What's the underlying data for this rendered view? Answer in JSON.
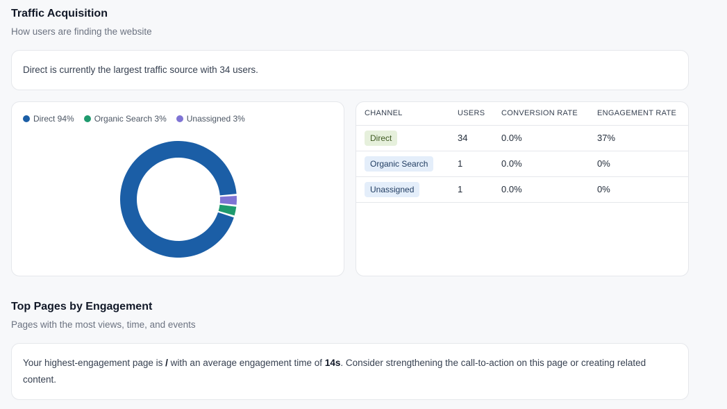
{
  "traffic": {
    "title": "Traffic Acquisition",
    "subtitle": "How users are finding the website",
    "insight": "Direct is currently the largest traffic source with 34 users."
  },
  "chart_data": {
    "type": "pie",
    "legend_position": "top-left",
    "series": [
      {
        "name": "Direct",
        "value": 94,
        "label": "Direct 94%",
        "color": "#1b5ea6"
      },
      {
        "name": "Organic Search",
        "value": 3,
        "label": "Organic Search 3%",
        "color": "#1f9a6e"
      },
      {
        "name": "Unassigned",
        "value": 3,
        "label": "Unassigned 3%",
        "color": "#7f74d4"
      }
    ]
  },
  "table": {
    "headers": [
      "CHANNEL",
      "USERS",
      "CONVERSION RATE",
      "ENGAGEMENT RATE"
    ],
    "rows": [
      {
        "channel": "Direct",
        "users": "34",
        "conversion": "0.0%",
        "engagement": "37%",
        "chip_bg": "#e6f0dc",
        "chip_fg": "#3f5a22"
      },
      {
        "channel": "Organic Search",
        "users": "1",
        "conversion": "0.0%",
        "engagement": "0%",
        "chip_bg": "#e4eefa",
        "chip_fg": "#1e3a5f"
      },
      {
        "channel": "Unassigned",
        "users": "1",
        "conversion": "0.0%",
        "engagement": "0%",
        "chip_bg": "#e4eefa",
        "chip_fg": "#1e3a5f"
      }
    ]
  },
  "pages": {
    "title": "Top Pages by Engagement",
    "subtitle": "Pages with the most views, time, and events",
    "insight_pre": "Your highest-engagement page is ",
    "insight_page": "/",
    "insight_mid": " with an average engagement time of ",
    "insight_time": "14s",
    "insight_post": ". Consider strengthening the call-to-action on this page or creating related content."
  }
}
